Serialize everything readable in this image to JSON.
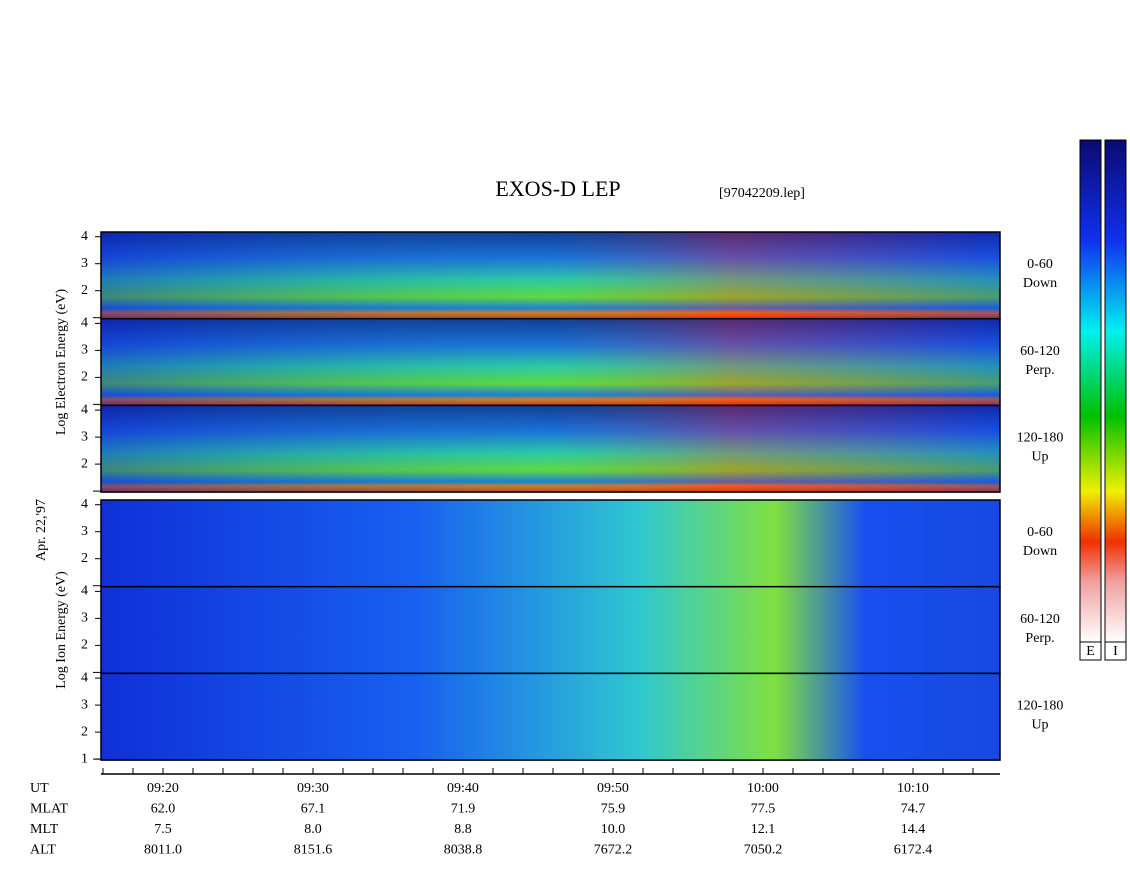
{
  "title": "EXOS-D LEP",
  "file": "[97042209.lep]",
  "date_label": "Apr. 22,'97",
  "groups": [
    {
      "ylabel": "Log Electron Energy (eV)",
      "panels": [
        {
          "range": "0-60",
          "dir": "Down",
          "yticks": [
            2,
            3,
            4
          ]
        },
        {
          "range": "60-120",
          "dir": "Perp.",
          "yticks": [
            2,
            3,
            4
          ]
        },
        {
          "range": "120-180",
          "dir": "Up",
          "yticks": [
            2,
            3,
            4
          ]
        }
      ]
    },
    {
      "ylabel": "Log Ion Energy (eV)",
      "panels": [
        {
          "range": "0-60",
          "dir": "Down",
          "yticks": [
            2,
            3,
            4
          ]
        },
        {
          "range": "60-120",
          "dir": "Perp.",
          "yticks": [
            2,
            3,
            4
          ]
        },
        {
          "range": "120-180",
          "dir": "Up",
          "yticks": [
            1,
            2,
            3,
            4
          ]
        }
      ]
    }
  ],
  "table": {
    "rows": [
      [
        "UT",
        "09:20",
        "09:30",
        "09:40",
        "09:50",
        "10:00",
        "10:10"
      ],
      [
        "MLAT",
        "62.0",
        "67.1",
        "71.9",
        "75.9",
        "77.5",
        "74.7"
      ],
      [
        "MLT",
        "7.5",
        "8.0",
        "8.8",
        "10.0",
        "12.1",
        "14.4"
      ],
      [
        "ALT",
        "8011.0",
        "8151.6",
        "8038.8",
        "7672.2",
        "7050.2",
        "6172.4"
      ]
    ]
  },
  "colorbars": [
    "E",
    "I"
  ]
}
